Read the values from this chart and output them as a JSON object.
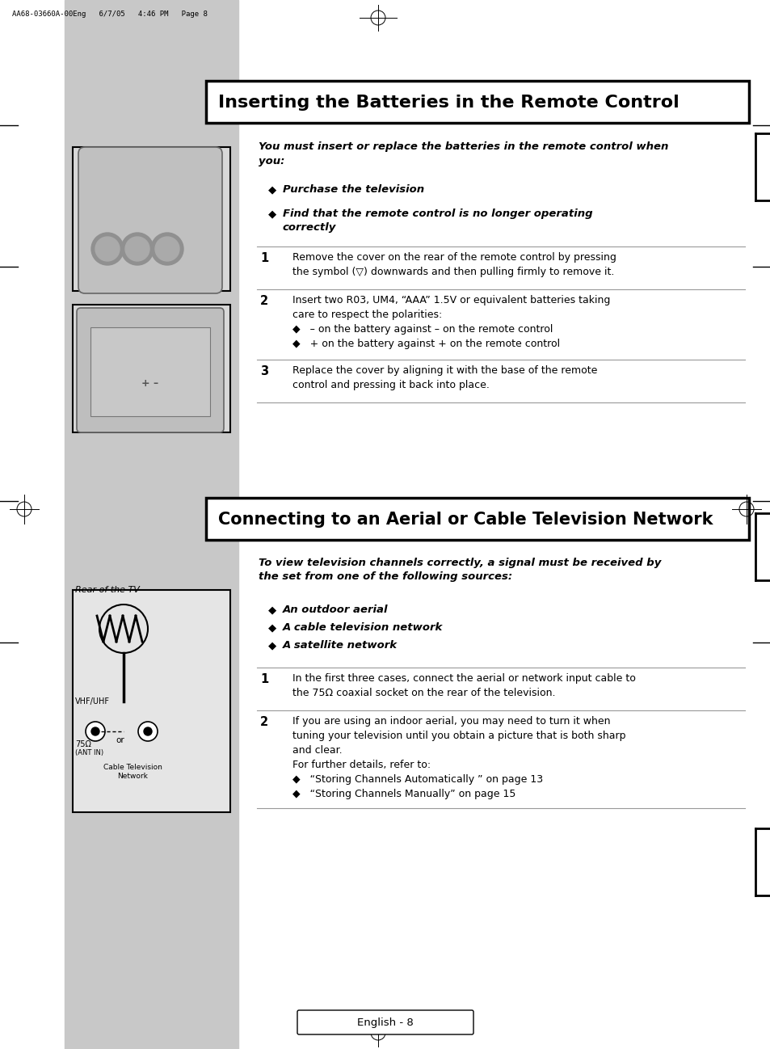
{
  "page_bg": "#ffffff",
  "gray_sidebar_color": "#c8c8c8",
  "header_text": "AA68-03660A-00Eng   6/7/05   4:46 PM   Page 8",
  "section1_title": "Inserting the Batteries in the Remote Control",
  "section2_title": "Connecting to an Aerial or Cable Television Network",
  "section1_intro": "You must insert or replace the batteries in the remote control when\nyou:",
  "section1_bullets": [
    "Purchase the television",
    "Find that the remote control is no longer operating\ncorrectly"
  ],
  "section1_steps": [
    [
      "1",
      "Remove the cover on the rear of the remote control by pressing\nthe symbol (▽) downwards and then pulling firmly to remove it."
    ],
    [
      "2",
      "Insert two R03, UM4, “AAA” 1.5V or equivalent batteries taking\ncare to respect the polarities:\n◆   – on the battery against – on the remote control\n◆   + on the battery against + on the remote control"
    ],
    [
      "3",
      "Replace the cover by aligning it with the base of the remote\ncontrol and pressing it back into place."
    ]
  ],
  "section2_intro": "To view television channels correctly, a signal must be received by\nthe set from one of the following sources:",
  "section2_bullets": [
    "An outdoor aerial",
    "A cable television network",
    "A satellite network"
  ],
  "section2_steps": [
    [
      "1",
      "In the first three cases, connect the aerial or network input cable to\nthe 75Ω coaxial socket on the rear of the television."
    ],
    [
      "2",
      "If you are using an indoor aerial, you may need to turn it when\ntuning your television until you obtain a picture that is both sharp\nand clear.\nFor further details, refer to:\n◆   “Storing Channels Automatically ” on page 13\n◆   “Storing Channels Manually” on page 15"
    ]
  ],
  "footer_text": "English - 8"
}
